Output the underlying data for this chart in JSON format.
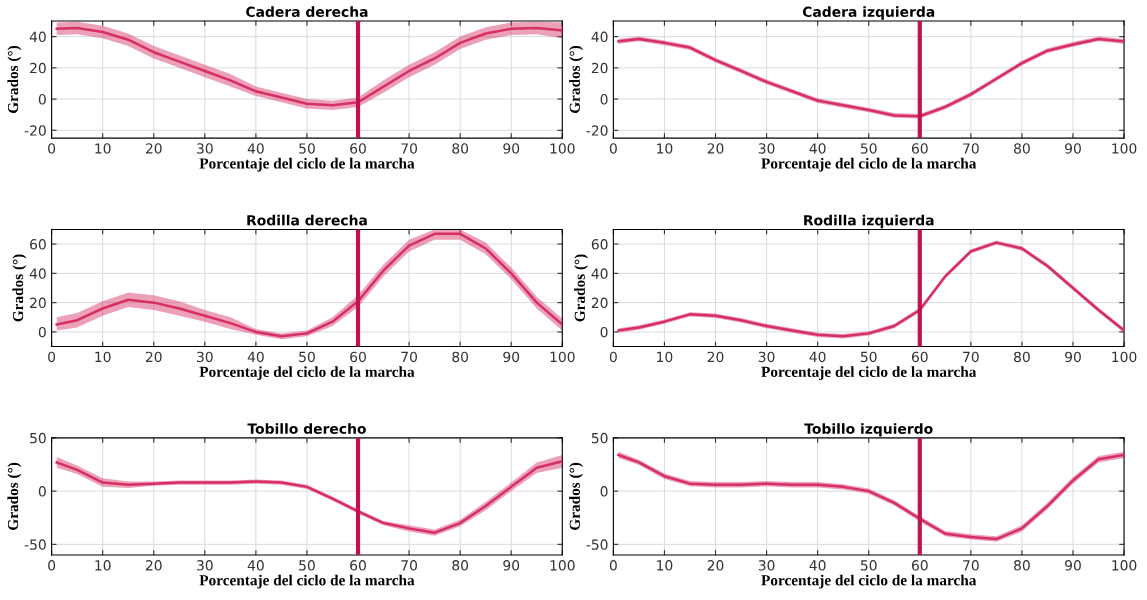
{
  "chart_data": [
    {
      "type": "line",
      "title": "Cadera derecha",
      "xlabel": "Porcentaje del ciclo de la marcha",
      "ylabel": "Grados (°)",
      "x": [
        1,
        5,
        10,
        15,
        20,
        25,
        30,
        35,
        40,
        45,
        50,
        55,
        60,
        65,
        70,
        75,
        80,
        85,
        90,
        95,
        100
      ],
      "xlim": [
        0,
        100
      ],
      "xticks": [
        0,
        10,
        20,
        30,
        40,
        50,
        60,
        70,
        80,
        90,
        100
      ],
      "ylim": [
        -25,
        50
      ],
      "yticks": [
        -20,
        0,
        20,
        40
      ],
      "grid": true,
      "ref_lines": [
        {
          "axis": "x",
          "value": 60,
          "color": "#c2124e"
        }
      ],
      "series": [
        {
          "color": "#d62f63",
          "values": [
            45,
            45.5,
            43,
            38,
            30,
            24,
            18,
            12,
            5,
            1,
            -3,
            -4,
            -2,
            8,
            18,
            26,
            36,
            42,
            45,
            45.5,
            44
          ],
          "lower": [
            41,
            41.5,
            39,
            34,
            26,
            20,
            14,
            8,
            2,
            -2,
            -6,
            -7,
            -5,
            4,
            14,
            22,
            32,
            38,
            41,
            41.5,
            39
          ],
          "upper": [
            49,
            49.5,
            47,
            42,
            34,
            28,
            22,
            16,
            8,
            4,
            0,
            -1,
            1,
            12,
            22,
            30,
            40,
            46,
            49,
            49.5,
            49
          ]
        }
      ]
    },
    {
      "type": "line",
      "title": "Cadera izquierda",
      "xlabel": "Porcentaje del ciclo de la marcha",
      "ylabel": "Grados (°)",
      "x": [
        1,
        5,
        10,
        15,
        20,
        25,
        30,
        35,
        40,
        45,
        50,
        55,
        60,
        65,
        70,
        75,
        80,
        85,
        90,
        95,
        100
      ],
      "xlim": [
        0,
        100
      ],
      "xticks": [
        0,
        10,
        20,
        30,
        40,
        50,
        60,
        70,
        80,
        90,
        100
      ],
      "ylim": [
        -25,
        50
      ],
      "yticks": [
        -20,
        0,
        20,
        40
      ],
      "grid": true,
      "ref_lines": [
        {
          "axis": "x",
          "value": 60,
          "color": "#c2124e"
        }
      ],
      "series": [
        {
          "color": "#d62f63",
          "values": [
            37,
            38.5,
            36,
            33,
            25,
            18,
            11,
            5,
            -1,
            -4,
            -7,
            -10.5,
            -11,
            -5,
            3,
            13,
            23,
            31,
            35,
            38.5,
            37
          ],
          "lower": [
            35.5,
            37,
            34.5,
            31.5,
            23.5,
            16.5,
            9.5,
            3.5,
            -2.5,
            -5.5,
            -8.5,
            -12,
            -12.5,
            -6.5,
            1.5,
            11.5,
            21.5,
            29.5,
            33.5,
            37,
            35.5
          ],
          "upper": [
            38.5,
            40,
            37.5,
            34.5,
            26.5,
            19.5,
            12.5,
            6.5,
            0.5,
            -2.5,
            -5.5,
            -9,
            -9.5,
            -3.5,
            4.5,
            14.5,
            24.5,
            32.5,
            36.5,
            40,
            38.5
          ]
        }
      ]
    },
    {
      "type": "line",
      "title": "Rodilla derecha",
      "xlabel": "Porcentaje del ciclo de la marcha",
      "ylabel": "Grados (°)",
      "x": [
        1,
        5,
        10,
        15,
        20,
        25,
        30,
        35,
        40,
        45,
        50,
        55,
        60,
        65,
        70,
        75,
        80,
        85,
        90,
        95,
        100
      ],
      "xlim": [
        0,
        100
      ],
      "xticks": [
        0,
        10,
        20,
        30,
        40,
        50,
        60,
        70,
        80,
        90,
        100
      ],
      "ylim": [
        -10,
        70
      ],
      "yticks": [
        0,
        20,
        40,
        60
      ],
      "grid": true,
      "ref_lines": [
        {
          "axis": "x",
          "value": 60,
          "color": "#c2124e"
        }
      ],
      "series": [
        {
          "color": "#d62f63",
          "values": [
            5,
            8,
            16,
            22,
            20,
            16,
            11,
            6,
            0,
            -3,
            -1,
            7,
            21,
            42,
            59,
            67,
            67,
            57,
            40,
            20,
            5
          ],
          "lower": [
            1,
            3,
            11,
            17,
            15,
            11,
            7,
            2,
            -2,
            -5,
            -3,
            4,
            17,
            38,
            55,
            63,
            63,
            53,
            36,
            16,
            1
          ],
          "upper": [
            10,
            13,
            21,
            27,
            25,
            21,
            15,
            10,
            2,
            -1,
            1,
            10,
            25,
            46,
            63,
            70,
            70,
            61,
            44,
            24,
            9
          ]
        }
      ]
    },
    {
      "type": "line",
      "title": "Rodilla izquierda",
      "xlabel": "Porcentaje del ciclo de la marcha",
      "ylabel": "Grados (°)",
      "x": [
        1,
        5,
        10,
        15,
        20,
        25,
        30,
        35,
        40,
        45,
        50,
        55,
        60,
        65,
        70,
        75,
        80,
        85,
        90,
        95,
        100
      ],
      "xlim": [
        0,
        100
      ],
      "xticks": [
        0,
        10,
        20,
        30,
        40,
        50,
        60,
        70,
        80,
        90,
        100
      ],
      "ylim": [
        -10,
        70
      ],
      "yticks": [
        0,
        20,
        40,
        60
      ],
      "grid": true,
      "ref_lines": [
        {
          "axis": "x",
          "value": 60,
          "color": "#c2124e"
        }
      ],
      "series": [
        {
          "color": "#d62f63",
          "values": [
            1,
            3,
            7,
            12,
            11,
            8,
            4,
            1,
            -2,
            -3,
            -1,
            4,
            15,
            38,
            55,
            61,
            57,
            45,
            30,
            15,
            1
          ],
          "lower": [
            -0.5,
            1.5,
            5.5,
            10.5,
            9.5,
            6.5,
            2.5,
            -0.5,
            -3.5,
            -4.5,
            -2.5,
            2.5,
            13.5,
            36.5,
            53.5,
            59.5,
            55.5,
            43.5,
            28.5,
            13.5,
            -0.5
          ],
          "upper": [
            2.5,
            4.5,
            8.5,
            13.5,
            12.5,
            9.5,
            5.5,
            2.5,
            -0.5,
            -1.5,
            0.5,
            5.5,
            16.5,
            39.5,
            56.5,
            62.5,
            58.5,
            46.5,
            31.5,
            16.5,
            2.5
          ]
        }
      ]
    },
    {
      "type": "line",
      "title": "Tobillo derecho",
      "xlabel": "Porcentaje del ciclo de la marcha",
      "ylabel": "Grados (°)",
      "x": [
        1,
        5,
        10,
        15,
        20,
        25,
        30,
        35,
        40,
        45,
        50,
        55,
        60,
        65,
        70,
        75,
        80,
        85,
        90,
        95,
        100
      ],
      "xlim": [
        0,
        100
      ],
      "xticks": [
        0,
        10,
        20,
        30,
        40,
        50,
        60,
        70,
        80,
        90,
        100
      ],
      "ylim": [
        -60,
        50
      ],
      "yticks": [
        -50,
        0,
        50
      ],
      "grid": true,
      "ref_lines": [
        {
          "axis": "x",
          "value": 60,
          "color": "#c2124e"
        }
      ],
      "series": [
        {
          "color": "#d62f63",
          "values": [
            27,
            20,
            8,
            6,
            7,
            8,
            8,
            8,
            9,
            8,
            4,
            -7,
            -19,
            -30,
            -35,
            -39,
            -30,
            -14,
            4,
            22,
            28
          ],
          "lower": [
            22,
            16,
            4,
            3,
            5,
            6,
            6,
            6,
            7,
            6,
            2,
            -9,
            -21,
            -32,
            -38,
            -42,
            -33,
            -18,
            0,
            17,
            22
          ],
          "upper": [
            32,
            24,
            12,
            9,
            9,
            10,
            10,
            10,
            11,
            10,
            6,
            -5,
            -17,
            -28,
            -32,
            -36,
            -27,
            -10,
            8,
            27,
            34
          ]
        }
      ]
    },
    {
      "type": "line",
      "title": "Tobillo izquierdo",
      "xlabel": "Porcentaje del ciclo de la marcha",
      "ylabel": "Grados (°)",
      "x": [
        1,
        5,
        10,
        15,
        20,
        25,
        30,
        35,
        40,
        45,
        50,
        55,
        60,
        65,
        70,
        75,
        80,
        85,
        90,
        95,
        100
      ],
      "xlim": [
        0,
        100
      ],
      "xticks": [
        0,
        10,
        20,
        30,
        40,
        50,
        60,
        70,
        80,
        90,
        100
      ],
      "ylim": [
        -60,
        50
      ],
      "yticks": [
        -50,
        0,
        50
      ],
      "grid": true,
      "ref_lines": [
        {
          "axis": "x",
          "value": 60,
          "color": "#c2124e"
        }
      ],
      "series": [
        {
          "color": "#d62f63",
          "values": [
            34,
            27,
            14,
            7,
            6,
            6,
            7,
            6,
            6,
            4,
            0,
            -11,
            -26,
            -40,
            -43,
            -45,
            -35,
            -14,
            10,
            30,
            34
          ],
          "lower": [
            31,
            24.5,
            11.5,
            4.5,
            3.5,
            3.5,
            4.5,
            3.5,
            3.5,
            1.5,
            -2.5,
            -13.5,
            -28.5,
            -42.5,
            -45.5,
            -47.5,
            -38,
            -17,
            7,
            27,
            31
          ],
          "upper": [
            37,
            29.5,
            16.5,
            9.5,
            8.5,
            8.5,
            9.5,
            8.5,
            8.5,
            6.5,
            2.5,
            -8.5,
            -23.5,
            -37.5,
            -40.5,
            -42.5,
            -32,
            -11,
            13,
            33,
            37
          ]
        }
      ]
    }
  ]
}
